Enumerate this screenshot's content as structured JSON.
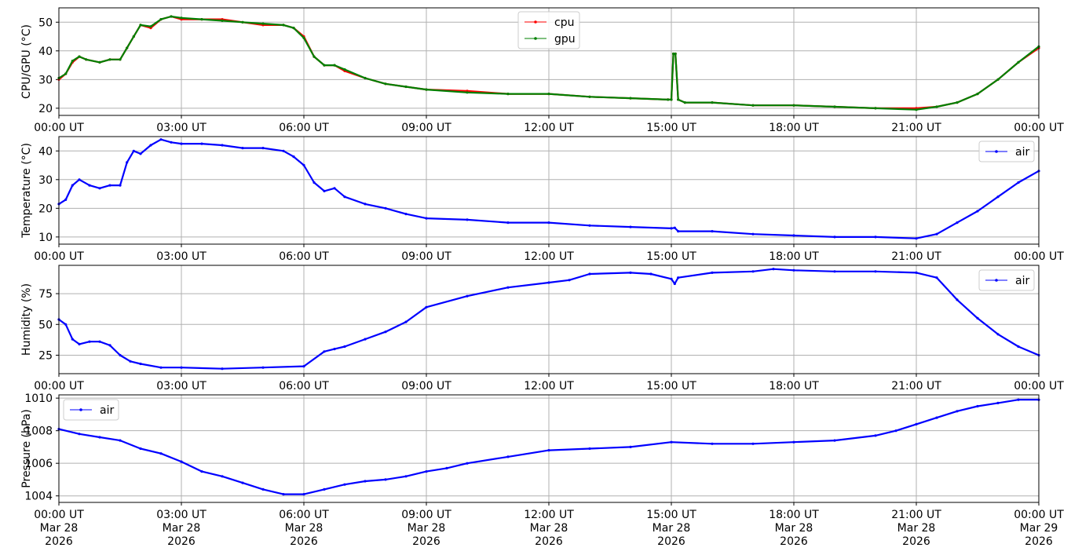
{
  "colors": {
    "cpu": "#ff0000",
    "gpu": "#008000",
    "air": "#0000ff",
    "grid": "#b0b0b0",
    "axes": "#000000"
  },
  "x_ticks": [
    "00:00 UT",
    "03:00 UT",
    "06:00 UT",
    "09:00 UT",
    "12:00 UT",
    "15:00 UT",
    "18:00 UT",
    "21:00 UT",
    "00:00 UT"
  ],
  "x_ticks_bottom": [
    [
      "00:00 UT",
      "Mar 28",
      "2026"
    ],
    [
      "03:00 UT",
      "Mar 28",
      "2026"
    ],
    [
      "06:00 UT",
      "Mar 28",
      "2026"
    ],
    [
      "09:00 UT",
      "Mar 28",
      "2026"
    ],
    [
      "12:00 UT",
      "Mar 28",
      "2026"
    ],
    [
      "15:00 UT",
      "Mar 28",
      "2026"
    ],
    [
      "18:00 UT",
      "Mar 28",
      "2026"
    ],
    [
      "21:00 UT",
      "Mar 28",
      "2026"
    ],
    [
      "00:00 UT",
      "Mar 29",
      "2026"
    ]
  ],
  "chart_data": [
    {
      "type": "line",
      "ylabel": "CPU/GPU (°C)",
      "ylim": [
        17.5,
        55
      ],
      "yticks": [
        20,
        30,
        40,
        50
      ],
      "xlim": [
        "2026-03-28T00:00",
        "2026-03-29T00:00"
      ],
      "grid": true,
      "legend": "top-center",
      "series": [
        {
          "name": "cpu",
          "color": "#ff0000",
          "x": [
            "2026-03-28T00:00",
            "2026-03-28T00:10",
            "2026-03-28T00:20",
            "2026-03-28T00:30",
            "2026-03-28T00:40",
            "2026-03-28T01:00",
            "2026-03-28T01:15",
            "2026-03-28T01:30",
            "2026-03-28T01:40",
            "2026-03-28T01:50",
            "2026-03-28T02:00",
            "2026-03-28T02:15",
            "2026-03-28T02:30",
            "2026-03-28T02:45",
            "2026-03-28T03:00",
            "2026-03-28T03:30",
            "2026-03-28T04:00",
            "2026-03-28T04:30",
            "2026-03-28T05:00",
            "2026-03-28T05:30",
            "2026-03-28T05:45",
            "2026-03-28T06:00",
            "2026-03-28T06:15",
            "2026-03-28T06:30",
            "2026-03-28T06:45",
            "2026-03-28T07:00",
            "2026-03-28T07:30",
            "2026-03-28T08:00",
            "2026-03-28T08:30",
            "2026-03-28T09:00",
            "2026-03-28T10:00",
            "2026-03-28T11:00",
            "2026-03-28T12:00",
            "2026-03-28T13:00",
            "2026-03-28T14:00",
            "2026-03-28T14:55",
            "2026-03-28T15:00",
            "2026-03-28T15:03",
            "2026-03-28T15:06",
            "2026-03-28T15:10",
            "2026-03-28T15:20",
            "2026-03-28T16:00",
            "2026-03-28T17:00",
            "2026-03-28T18:00",
            "2026-03-28T19:00",
            "2026-03-28T20:00",
            "2026-03-28T21:00",
            "2026-03-28T21:30",
            "2026-03-28T22:00",
            "2026-03-28T22:30",
            "2026-03-28T23:00",
            "2026-03-28T23:30",
            "2026-03-29T00:00"
          ],
          "y": [
            30,
            32,
            36,
            38,
            37,
            36,
            37,
            37,
            41,
            45,
            49,
            48,
            51,
            52,
            51,
            51,
            51,
            50,
            49,
            49,
            48,
            45,
            38,
            35,
            35,
            33,
            30.5,
            28.5,
            27.5,
            26.5,
            26,
            25,
            25,
            24,
            23.5,
            23,
            23,
            39,
            39,
            23,
            22,
            22,
            21,
            21,
            20.5,
            20,
            20,
            20.5,
            22,
            25,
            30,
            36,
            41
          ]
        },
        {
          "name": "gpu",
          "color": "#008000",
          "x": [
            "2026-03-28T00:00",
            "2026-03-28T00:10",
            "2026-03-28T00:20",
            "2026-03-28T00:30",
            "2026-03-28T00:40",
            "2026-03-28T01:00",
            "2026-03-28T01:15",
            "2026-03-28T01:30",
            "2026-03-28T01:40",
            "2026-03-28T01:50",
            "2026-03-28T02:00",
            "2026-03-28T02:15",
            "2026-03-28T02:30",
            "2026-03-28T02:45",
            "2026-03-28T03:00",
            "2026-03-28T03:30",
            "2026-03-28T04:00",
            "2026-03-28T04:30",
            "2026-03-28T05:00",
            "2026-03-28T05:30",
            "2026-03-28T05:45",
            "2026-03-28T06:00",
            "2026-03-28T06:15",
            "2026-03-28T06:30",
            "2026-03-28T06:45",
            "2026-03-28T07:00",
            "2026-03-28T07:30",
            "2026-03-28T08:00",
            "2026-03-28T08:30",
            "2026-03-28T09:00",
            "2026-03-28T10:00",
            "2026-03-28T11:00",
            "2026-03-28T12:00",
            "2026-03-28T13:00",
            "2026-03-28T14:00",
            "2026-03-28T14:55",
            "2026-03-28T15:00",
            "2026-03-28T15:03",
            "2026-03-28T15:06",
            "2026-03-28T15:10",
            "2026-03-28T15:20",
            "2026-03-28T16:00",
            "2026-03-28T17:00",
            "2026-03-28T18:00",
            "2026-03-28T19:00",
            "2026-03-28T20:00",
            "2026-03-28T21:00",
            "2026-03-28T21:30",
            "2026-03-28T22:00",
            "2026-03-28T22:30",
            "2026-03-28T23:00",
            "2026-03-28T23:30",
            "2026-03-29T00:00"
          ],
          "y": [
            30.5,
            32,
            36.5,
            38,
            37,
            36,
            37,
            37,
            41,
            45,
            49,
            48.5,
            51,
            52,
            51.5,
            51,
            50.5,
            50,
            49.5,
            49,
            48,
            44.5,
            38,
            35,
            35,
            33.5,
            30.5,
            28.5,
            27.5,
            26.5,
            25.5,
            25,
            25,
            24,
            23.5,
            23,
            23,
            39,
            39,
            23,
            22,
            22,
            21,
            21,
            20.5,
            20,
            19.5,
            20.5,
            22,
            25,
            30,
            36,
            41.5
          ]
        }
      ]
    },
    {
      "type": "line",
      "ylabel": "Temperature (°C)",
      "ylim": [
        7.5,
        45
      ],
      "yticks": [
        10,
        20,
        30,
        40
      ],
      "xlim": [
        "2026-03-28T00:00",
        "2026-03-29T00:00"
      ],
      "grid": true,
      "legend": "top-right",
      "series": [
        {
          "name": "air",
          "color": "#0000ff",
          "x": [
            "2026-03-28T00:00",
            "2026-03-28T00:10",
            "2026-03-28T00:20",
            "2026-03-28T00:30",
            "2026-03-28T00:45",
            "2026-03-28T01:00",
            "2026-03-28T01:15",
            "2026-03-28T01:30",
            "2026-03-28T01:40",
            "2026-03-28T01:50",
            "2026-03-28T02:00",
            "2026-03-28T02:15",
            "2026-03-28T02:30",
            "2026-03-28T02:45",
            "2026-03-28T03:00",
            "2026-03-28T03:30",
            "2026-03-28T04:00",
            "2026-03-28T04:30",
            "2026-03-28T05:00",
            "2026-03-28T05:30",
            "2026-03-28T05:45",
            "2026-03-28T06:00",
            "2026-03-28T06:15",
            "2026-03-28T06:30",
            "2026-03-28T06:45",
            "2026-03-28T07:00",
            "2026-03-28T07:30",
            "2026-03-28T08:00",
            "2026-03-28T08:30",
            "2026-03-28T09:00",
            "2026-03-28T10:00",
            "2026-03-28T11:00",
            "2026-03-28T12:00",
            "2026-03-28T13:00",
            "2026-03-28T14:00",
            "2026-03-28T15:00",
            "2026-03-28T15:05",
            "2026-03-28T15:10",
            "2026-03-28T16:00",
            "2026-03-28T17:00",
            "2026-03-28T18:00",
            "2026-03-28T19:00",
            "2026-03-28T20:00",
            "2026-03-28T21:00",
            "2026-03-28T21:30",
            "2026-03-28T22:00",
            "2026-03-28T22:30",
            "2026-03-28T23:00",
            "2026-03-28T23:30",
            "2026-03-29T00:00"
          ],
          "y": [
            21.5,
            23,
            28,
            30,
            28,
            27,
            28,
            28,
            36,
            40,
            39,
            42,
            44,
            43,
            42.5,
            42.5,
            42,
            41,
            41,
            40,
            38,
            35,
            29,
            26,
            27,
            24,
            21.5,
            20,
            18,
            16.5,
            16,
            15,
            15,
            14,
            13.5,
            13,
            13.2,
            12,
            12,
            11,
            10.5,
            10,
            10,
            9.5,
            11,
            15,
            19,
            24,
            29,
            33
          ]
        }
      ]
    },
    {
      "type": "line",
      "ylabel": "Humidity (%)",
      "ylim": [
        10,
        98
      ],
      "yticks": [
        25,
        50,
        75
      ],
      "xlim": [
        "2026-03-28T00:00",
        "2026-03-29T00:00"
      ],
      "grid": true,
      "legend": "top-right",
      "series": [
        {
          "name": "air",
          "color": "#0000ff",
          "x": [
            "2026-03-28T00:00",
            "2026-03-28T00:10",
            "2026-03-28T00:20",
            "2026-03-28T00:30",
            "2026-03-28T00:45",
            "2026-03-28T01:00",
            "2026-03-28T01:15",
            "2026-03-28T01:30",
            "2026-03-28T01:45",
            "2026-03-28T02:00",
            "2026-03-28T02:30",
            "2026-03-28T03:00",
            "2026-03-28T04:00",
            "2026-03-28T05:00",
            "2026-03-28T06:00",
            "2026-03-28T06:30",
            "2026-03-28T06:45",
            "2026-03-28T07:00",
            "2026-03-28T07:30",
            "2026-03-28T08:00",
            "2026-03-28T08:30",
            "2026-03-28T09:00",
            "2026-03-28T10:00",
            "2026-03-28T11:00",
            "2026-03-28T12:00",
            "2026-03-28T12:30",
            "2026-03-28T13:00",
            "2026-03-28T14:00",
            "2026-03-28T14:30",
            "2026-03-28T15:00",
            "2026-03-28T15:05",
            "2026-03-28T15:10",
            "2026-03-28T16:00",
            "2026-03-28T17:00",
            "2026-03-28T17:30",
            "2026-03-28T18:00",
            "2026-03-28T19:00",
            "2026-03-28T20:00",
            "2026-03-28T21:00",
            "2026-03-28T21:30",
            "2026-03-28T22:00",
            "2026-03-28T22:30",
            "2026-03-28T23:00",
            "2026-03-28T23:30",
            "2026-03-29T00:00"
          ],
          "y": [
            54,
            50,
            38,
            34,
            36,
            36,
            33,
            25,
            20,
            18,
            15,
            15,
            14,
            15,
            16,
            28,
            30,
            32,
            38,
            44,
            52,
            64,
            73,
            80,
            84,
            86,
            91,
            92,
            91,
            87,
            83,
            88,
            92,
            93,
            95,
            94,
            93,
            93,
            92,
            88,
            70,
            55,
            42,
            32,
            25
          ]
        }
      ]
    },
    {
      "type": "line",
      "ylabel": "Pressure (hPa)",
      "ylim": [
        1003.6,
        1010.2
      ],
      "yticks": [
        1004,
        1006,
        1008,
        1010
      ],
      "xlim": [
        "2026-03-28T00:00",
        "2026-03-29T00:00"
      ],
      "grid": true,
      "legend": "top-left",
      "series": [
        {
          "name": "air",
          "color": "#0000ff",
          "x": [
            "2026-03-28T00:00",
            "2026-03-28T00:30",
            "2026-03-28T01:00",
            "2026-03-28T01:30",
            "2026-03-28T02:00",
            "2026-03-28T02:30",
            "2026-03-28T03:00",
            "2026-03-28T03:30",
            "2026-03-28T04:00",
            "2026-03-28T04:30",
            "2026-03-28T05:00",
            "2026-03-28T05:30",
            "2026-03-28T06:00",
            "2026-03-28T06:30",
            "2026-03-28T07:00",
            "2026-03-28T07:30",
            "2026-03-28T08:00",
            "2026-03-28T08:30",
            "2026-03-28T09:00",
            "2026-03-28T09:30",
            "2026-03-28T10:00",
            "2026-03-28T11:00",
            "2026-03-28T12:00",
            "2026-03-28T13:00",
            "2026-03-28T14:00",
            "2026-03-28T15:00",
            "2026-03-28T16:00",
            "2026-03-28T17:00",
            "2026-03-28T18:00",
            "2026-03-28T19:00",
            "2026-03-28T20:00",
            "2026-03-28T20:30",
            "2026-03-28T21:00",
            "2026-03-28T21:30",
            "2026-03-28T22:00",
            "2026-03-28T22:30",
            "2026-03-28T23:00",
            "2026-03-28T23:30",
            "2026-03-29T00:00"
          ],
          "y": [
            1008.1,
            1007.8,
            1007.6,
            1007.4,
            1006.9,
            1006.6,
            1006.1,
            1005.5,
            1005.2,
            1004.8,
            1004.4,
            1004.1,
            1004.1,
            1004.4,
            1004.7,
            1004.9,
            1005.0,
            1005.2,
            1005.5,
            1005.7,
            1006.0,
            1006.4,
            1006.8,
            1006.9,
            1007.0,
            1007.3,
            1007.2,
            1007.2,
            1007.3,
            1007.4,
            1007.7,
            1008.0,
            1008.4,
            1008.8,
            1009.2,
            1009.5,
            1009.7,
            1009.9,
            1009.9
          ]
        }
      ]
    }
  ]
}
